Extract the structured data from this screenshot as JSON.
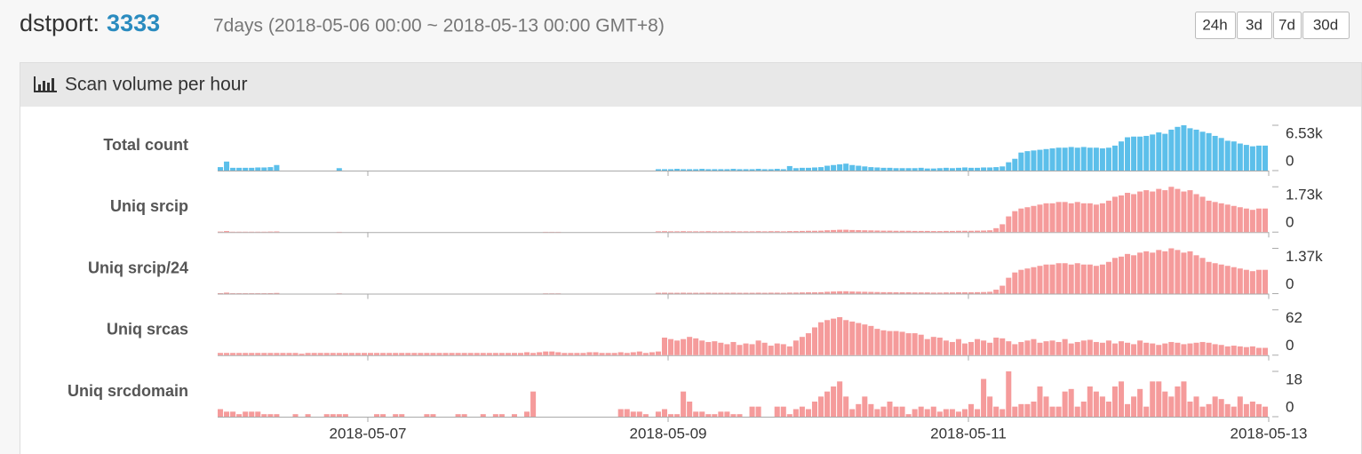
{
  "header": {
    "label": "dstport:",
    "port": "3333",
    "range": "7days (2018-05-06 00:00 ~ 2018-05-13 00:00 GMT+8)",
    "buttons": [
      "24h",
      "3d",
      "7d",
      "30d"
    ]
  },
  "panel": {
    "title": "Scan volume per hour"
  },
  "x_axis": {
    "xlim": [
      "2018-05-06",
      "2018-05-13"
    ],
    "xticks": [
      "2018-05-07",
      "2018-05-09",
      "2018-05-11",
      "2018-05-13"
    ]
  },
  "chart_data": [
    {
      "type": "bar",
      "title": "Total count",
      "color": "#5cbfea",
      "ylim": [
        0,
        6530
      ],
      "yticks": [
        0,
        {
          "value": 6530,
          "label": "6.53k"
        }
      ],
      "values": [
        500,
        1300,
        400,
        400,
        400,
        400,
        450,
        450,
        500,
        800,
        0,
        0,
        0,
        0,
        0,
        0,
        0,
        0,
        0,
        350,
        0,
        0,
        0,
        0,
        0,
        0,
        0,
        0,
        0,
        0,
        0,
        0,
        0,
        0,
        0,
        0,
        0,
        0,
        0,
        0,
        0,
        0,
        0,
        0,
        0,
        0,
        0,
        0,
        0,
        0,
        0,
        0,
        0,
        0,
        0,
        0,
        0,
        0,
        0,
        0,
        0,
        0,
        0,
        0,
        0,
        0,
        0,
        0,
        0,
        0,
        200,
        200,
        200,
        250,
        200,
        200,
        200,
        250,
        200,
        200,
        200,
        200,
        250,
        200,
        200,
        200,
        250,
        200,
        200,
        250,
        200,
        650,
        350,
        400,
        400,
        450,
        500,
        700,
        800,
        900,
        1000,
        800,
        700,
        600,
        500,
        450,
        400,
        400,
        350,
        350,
        350,
        350,
        400,
        300,
        300,
        350,
        400,
        350,
        400,
        450,
        400,
        400,
        450,
        450,
        500,
        600,
        1200,
        1700,
        2600,
        2800,
        2900,
        3000,
        3100,
        3200,
        3300,
        3300,
        3400,
        3300,
        3400,
        3300,
        3300,
        3200,
        3300,
        3600,
        4200,
        4800,
        4900,
        4900,
        5000,
        5200,
        5500,
        5300,
        5900,
        6300,
        6530,
        6100,
        5900,
        5600,
        5400,
        5000,
        4700,
        4300,
        4200,
        3900,
        3700,
        3500,
        3600,
        3600
      ]
    },
    {
      "type": "bar",
      "title": "Uniq srcip",
      "color": "#f59b9b",
      "ylim": [
        0,
        1730
      ],
      "yticks": [
        0,
        {
          "value": 1730,
          "label": "1.73k"
        }
      ],
      "values": [
        20,
        40,
        15,
        15,
        15,
        15,
        15,
        15,
        20,
        25,
        0,
        0,
        0,
        0,
        0,
        0,
        0,
        0,
        0,
        10,
        0,
        0,
        0,
        0,
        0,
        0,
        0,
        0,
        0,
        0,
        0,
        0,
        0,
        0,
        0,
        0,
        0,
        0,
        0,
        0,
        0,
        0,
        0,
        0,
        0,
        0,
        0,
        0,
        0,
        0,
        0,
        0,
        10,
        10,
        10,
        0,
        0,
        0,
        0,
        0,
        0,
        0,
        0,
        0,
        0,
        0,
        0,
        0,
        0,
        0,
        30,
        35,
        30,
        30,
        35,
        30,
        30,
        30,
        35,
        30,
        30,
        30,
        35,
        30,
        30,
        30,
        35,
        30,
        35,
        35,
        30,
        40,
        40,
        45,
        50,
        50,
        55,
        70,
        80,
        90,
        90,
        80,
        75,
        70,
        65,
        60,
        55,
        55,
        50,
        50,
        50,
        45,
        45,
        45,
        40,
        40,
        45,
        45,
        50,
        50,
        50,
        55,
        60,
        70,
        150,
        300,
        600,
        800,
        900,
        950,
        1000,
        1050,
        1100,
        1100,
        1150,
        1150,
        1100,
        1150,
        1100,
        1100,
        1050,
        1100,
        1200,
        1350,
        1400,
        1500,
        1450,
        1550,
        1600,
        1550,
        1650,
        1600,
        1730,
        1650,
        1550,
        1600,
        1450,
        1350,
        1200,
        1150,
        1100,
        1050,
        1000,
        950,
        900,
        850,
        900,
        900
      ]
    },
    {
      "type": "bar",
      "title": "Uniq srcip/24",
      "color": "#f59b9b",
      "ylim": [
        0,
        1370
      ],
      "yticks": [
        0,
        {
          "value": 1370,
          "label": "1.37k"
        }
      ],
      "values": [
        15,
        30,
        12,
        12,
        12,
        12,
        12,
        12,
        15,
        20,
        0,
        0,
        0,
        0,
        0,
        0,
        0,
        0,
        0,
        8,
        0,
        0,
        0,
        0,
        0,
        0,
        0,
        0,
        0,
        0,
        0,
        0,
        0,
        0,
        0,
        0,
        0,
        0,
        0,
        0,
        0,
        0,
        0,
        0,
        0,
        0,
        0,
        0,
        0,
        0,
        0,
        0,
        8,
        8,
        8,
        0,
        0,
        0,
        0,
        0,
        0,
        0,
        0,
        0,
        0,
        0,
        0,
        0,
        0,
        0,
        25,
        28,
        25,
        25,
        28,
        25,
        25,
        25,
        28,
        25,
        25,
        25,
        28,
        25,
        25,
        25,
        28,
        25,
        28,
        28,
        25,
        32,
        32,
        36,
        40,
        40,
        44,
        56,
        64,
        72,
        72,
        64,
        60,
        56,
        52,
        48,
        44,
        44,
        40,
        40,
        40,
        36,
        36,
        36,
        32,
        32,
        36,
        36,
        40,
        40,
        40,
        44,
        48,
        56,
        120,
        240,
        480,
        640,
        720,
        760,
        800,
        840,
        880,
        880,
        920,
        920,
        880,
        920,
        880,
        880,
        840,
        880,
        960,
        1080,
        1120,
        1200,
        1160,
        1240,
        1280,
        1240,
        1320,
        1280,
        1370,
        1320,
        1240,
        1280,
        1160,
        1080,
        960,
        920,
        880,
        840,
        800,
        760,
        720,
        680,
        720,
        720
      ]
    },
    {
      "type": "bar",
      "title": "Uniq srcas",
      "color": "#f59b9b",
      "ylim": [
        0,
        62
      ],
      "yticks": [
        0,
        62
      ],
      "values": [
        3,
        3,
        3,
        3,
        3,
        3,
        3,
        3,
        3,
        3,
        3,
        3,
        3,
        2,
        3,
        3,
        3,
        3,
        3,
        3,
        3,
        3,
        3,
        3,
        3,
        3,
        3,
        3,
        3,
        3,
        3,
        3,
        3,
        3,
        3,
        3,
        3,
        3,
        3,
        3,
        3,
        3,
        3,
        3,
        3,
        3,
        3,
        3,
        3,
        4,
        3,
        4,
        5,
        5,
        4,
        3,
        3,
        3,
        3,
        4,
        4,
        3,
        3,
        3,
        4,
        3,
        4,
        5,
        3,
        4,
        5,
        24,
        22,
        20,
        22,
        25,
        23,
        20,
        18,
        19,
        17,
        15,
        18,
        14,
        16,
        15,
        20,
        17,
        13,
        16,
        15,
        12,
        20,
        25,
        30,
        38,
        45,
        48,
        50,
        52,
        48,
        46,
        44,
        42,
        40,
        36,
        34,
        33,
        33,
        32,
        30,
        30,
        28,
        22,
        25,
        24,
        20,
        18,
        22,
        16,
        18,
        22,
        20,
        17,
        24,
        23,
        19,
        15,
        18,
        20,
        22,
        17,
        19,
        20,
        18,
        22,
        16,
        18,
        20,
        21,
        18,
        17,
        20,
        16,
        19,
        17,
        15,
        20,
        17,
        16,
        14,
        16,
        18,
        17,
        15,
        16,
        17,
        18,
        17,
        15,
        14,
        12,
        13,
        12,
        11,
        12,
        10,
        10
      ]
    },
    {
      "type": "bar",
      "title": "Uniq srcdomain",
      "color": "#f59b9b",
      "ylim": [
        0,
        18
      ],
      "yticks": [
        0,
        18
      ],
      "values": [
        3,
        2,
        2,
        1,
        2,
        2,
        2,
        1,
        1,
        1,
        0,
        0,
        1,
        0,
        1,
        0,
        0,
        1,
        1,
        1,
        1,
        0,
        0,
        0,
        0,
        1,
        1,
        0,
        1,
        1,
        0,
        0,
        0,
        1,
        1,
        0,
        0,
        0,
        1,
        1,
        0,
        0,
        1,
        0,
        1,
        1,
        0,
        1,
        0,
        2,
        10,
        0,
        0,
        0,
        0,
        0,
        0,
        0,
        0,
        0,
        0,
        0,
        0,
        0,
        3,
        3,
        2,
        2,
        1,
        0,
        2,
        3,
        1,
        1,
        10,
        6,
        2,
        2,
        1,
        1,
        2,
        2,
        1,
        1,
        0,
        4,
        4,
        0,
        0,
        4,
        4,
        1,
        3,
        4,
        3,
        6,
        8,
        10,
        12,
        14,
        8,
        3,
        5,
        8,
        5,
        3,
        4,
        6,
        4,
        4,
        1,
        3,
        4,
        3,
        4,
        2,
        3,
        3,
        2,
        3,
        5,
        3,
        15,
        8,
        4,
        3,
        18,
        4,
        5,
        5,
        6,
        12,
        8,
        4,
        4,
        10,
        11,
        4,
        6,
        12,
        10,
        8,
        6,
        12,
        14,
        5,
        8,
        11,
        4,
        14,
        14,
        10,
        8,
        12,
        14,
        6,
        8,
        4,
        5,
        8,
        7,
        5,
        4,
        8,
        5,
        6,
        5,
        4
      ]
    }
  ]
}
